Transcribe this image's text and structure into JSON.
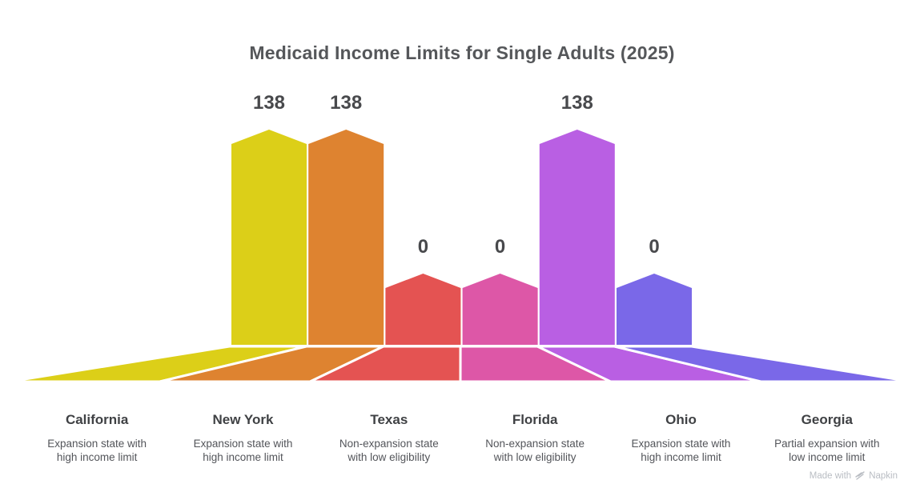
{
  "chart_data": {
    "type": "bar",
    "style": "3d-perspective pentagon bars rising from a fanned floor",
    "title": "Medicaid Income Limits for Single Adults (2025)",
    "categories": [
      "California",
      "New York",
      "Texas",
      "Florida",
      "Ohio",
      "Georgia"
    ],
    "values": [
      138,
      138,
      0,
      0,
      138,
      0
    ],
    "descriptions": [
      "Expansion state with\nhigh income limit",
      "Expansion state with\nhigh income limit",
      "Non-expansion state\nwith low eligibility",
      "Non-expansion state\nwith low eligibility",
      "Expansion state with\nhigh income limit",
      "Partial expansion with\nlow income limit"
    ],
    "colors": [
      "#dccf18",
      "#de8330",
      "#e45352",
      "#dd57a7",
      "#b95fe3",
      "#7a68e8"
    ],
    "value_label_color": "#48494c",
    "xlabel": "",
    "ylabel": "",
    "ylim": [
      0,
      138
    ],
    "grid": false,
    "legend": false,
    "value_labels_shown": true
  },
  "watermark": {
    "prefix": "Made with",
    "brand": "Napkin",
    "logo_icon": "napkin-scribble-icon"
  }
}
